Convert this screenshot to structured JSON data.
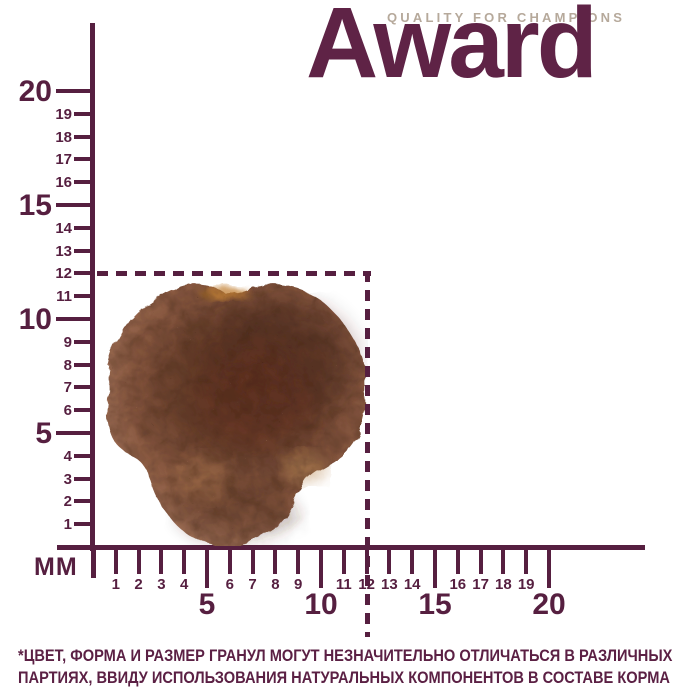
{
  "brand": {
    "tagline": "QUALITY FOR CHAMPIONS",
    "name": "Award"
  },
  "colors": {
    "accent_ruler": "#561f40",
    "logo": "#5f2346",
    "tagline": "#b6a99b",
    "kibble_core": "#5a3322",
    "kibble_edge": "#ae7d65"
  },
  "ruler": {
    "unit_label": "ММ",
    "x_ticks": [
      1,
      2,
      3,
      4,
      5,
      6,
      7,
      8,
      9,
      10,
      11,
      12,
      13,
      14,
      15,
      16,
      17,
      18,
      19,
      20
    ],
    "y_ticks": [
      1,
      2,
      3,
      4,
      5,
      6,
      7,
      8,
      9,
      10,
      11,
      12,
      13,
      14,
      15,
      16,
      17,
      18,
      19,
      20
    ],
    "major_ticks": [
      5,
      10,
      15,
      20
    ],
    "guide_size_mm": 12
  },
  "kibble": {
    "icon": "kibble-photo"
  },
  "disclaimer": {
    "line1": "*ЦВЕТ, ФОРМА И РАЗМЕР ГРАНУЛ МОГУТ НЕЗНАЧИТЕЛЬНО ОТЛИЧАТЬСЯ В РАЗЛИЧНЫХ",
    "line2": "ПАРТИЯХ, ВВИДУ ИСПОЛЬЗОВАНИЯ НАТУРАЛЬНЫХ КОМПОНЕНТОВ В СОСТАВЕ КОРМА"
  }
}
